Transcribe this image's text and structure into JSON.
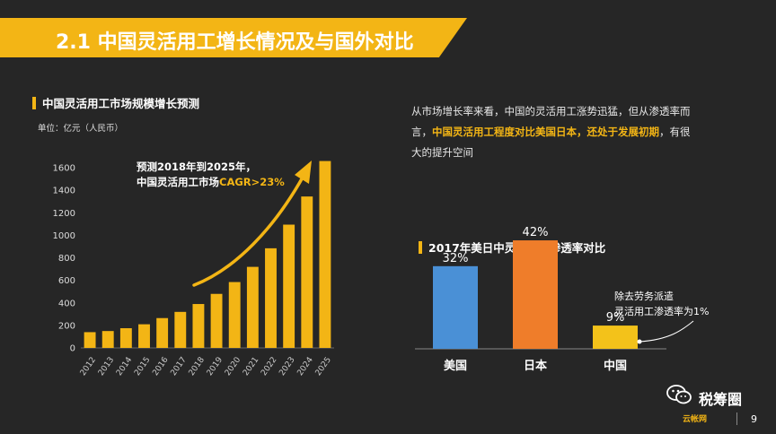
{
  "header": {
    "title": "2.1 中国灵活用工增长情况及与国外对比"
  },
  "left_chart": {
    "heading": "中国灵活用工市场规模增长预测",
    "unit": "单位：亿元（人民币）"
  },
  "annotation": {
    "line1": "预测2018年到2025年，",
    "line2_prefix": "中国灵活用工市场",
    "line2_highlight": "CAGR>23%"
  },
  "description": {
    "part1": "从市场增长率来看，中国的灵活用工涨势迅猛，但从渗透率而言，",
    "highlight": "中国灵活用工程度对比美国日本，还处于发展初期",
    "part2": "，有很大的提升空间"
  },
  "right_chart": {
    "heading": "2017年美日中灵活用工渗透率对比"
  },
  "note": {
    "line1": "除去劳务派遣",
    "line2": "灵活用工渗透率为1%"
  },
  "footer": {
    "brand": "税筹圈",
    "page": "9",
    "logo_text": "云帐网"
  },
  "colors": {
    "accent": "#f3b515",
    "usa": "#4a90d6",
    "japan": "#ef7d2a",
    "china": "#f3c21a"
  },
  "chart_data": [
    {
      "type": "bar",
      "title": "中国灵活用工市场规模增长预测",
      "ylabel": "单位：亿元（人民币）",
      "categories": [
        "2012",
        "2013",
        "2014",
        "2015",
        "2016",
        "2017",
        "2018",
        "2019",
        "2020",
        "2021",
        "2022",
        "2023",
        "2024",
        "2025"
      ],
      "values": [
        140,
        150,
        175,
        210,
        265,
        320,
        390,
        480,
        585,
        720,
        885,
        1095,
        1345,
        1660
      ],
      "ylim": [
        0,
        1800
      ],
      "yticks": [
        0,
        200,
        400,
        600,
        800,
        1000,
        1200,
        1400,
        1600
      ],
      "grid": false
    },
    {
      "type": "bar",
      "title": "2017年美日中灵活用工渗透率对比",
      "categories": [
        "美国",
        "日本",
        "中国"
      ],
      "values": [
        32,
        42,
        9
      ],
      "labels": [
        "32%",
        "42%",
        "9%"
      ],
      "ylim": [
        0,
        50
      ]
    }
  ]
}
